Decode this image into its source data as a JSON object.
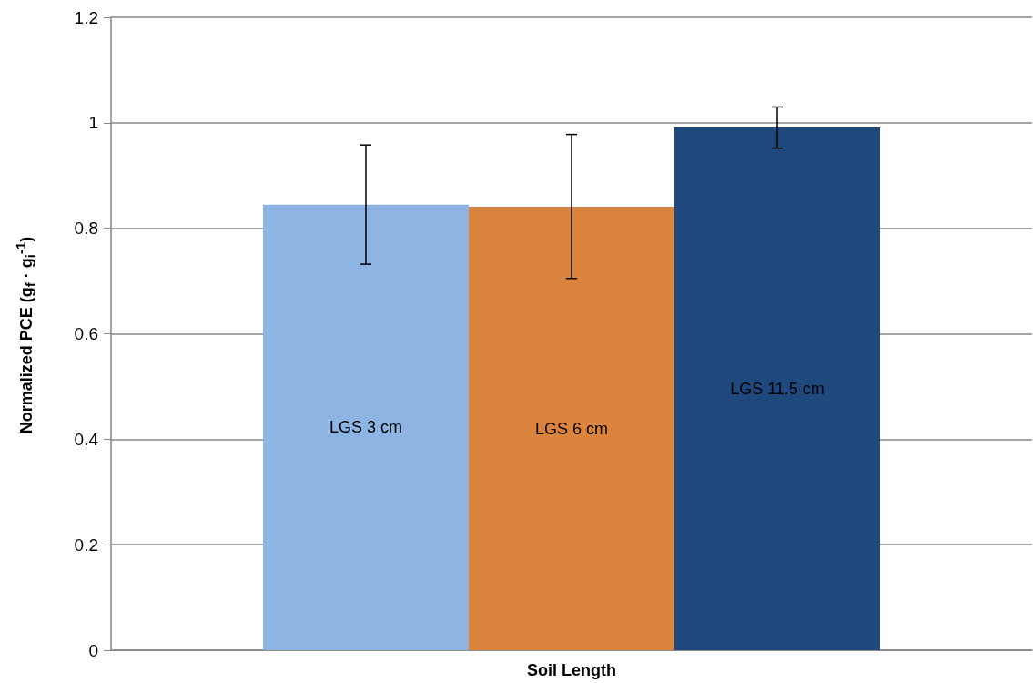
{
  "chart_data": {
    "type": "bar",
    "xlabel": "Soil Length",
    "ylabel": "Normalized PCE (g$_{f}$ · g$_{i}$$^{-1}$)",
    "categories": [
      null
    ],
    "series": [
      {
        "name": "LGS 3 cm",
        "color": "#8eb4e3",
        "values": [
          0.845
        ],
        "errors": [
          [
            0.732,
            0.958
          ]
        ]
      },
      {
        "name": "LGS 6 cm",
        "color": "#db843d",
        "values": [
          0.841
        ],
        "errors": [
          [
            0.705,
            0.978
          ]
        ]
      },
      {
        "name": "LGS 11.5 cm",
        "color": "#1f497d",
        "values": [
          0.991
        ],
        "errors": [
          [
            0.952,
            1.03
          ]
        ]
      }
    ],
    "ylim": [
      0,
      1.2
    ],
    "yticks": [
      0,
      0.2,
      0.4,
      0.6,
      0.8,
      1,
      1.2
    ],
    "grid": "y",
    "legend": false
  }
}
